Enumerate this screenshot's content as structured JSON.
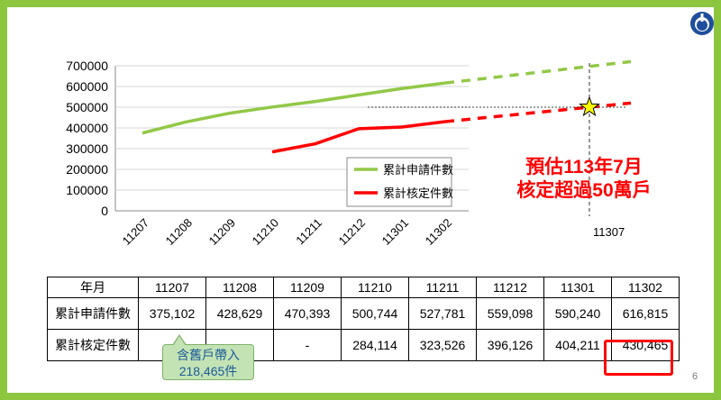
{
  "chart_data": {
    "type": "line",
    "categories": [
      "11207",
      "11208",
      "11209",
      "11210",
      "11211",
      "11212",
      "11301",
      "11302"
    ],
    "projection_label": "11307",
    "yticks": [
      "700000",
      "600000",
      "500000",
      "400000",
      "300000",
      "200000",
      "100000",
      "0"
    ],
    "ylim": [
      0,
      700000
    ],
    "series": [
      {
        "name": "累計申請件數",
        "color": "#92c847",
        "values": [
          375102,
          428629,
          470393,
          500744,
          527781,
          559098,
          590240,
          616815
        ],
        "projection": [
          616815,
          720000
        ]
      },
      {
        "name": "累計核定件數",
        "color": "#ff0000",
        "values": [
          null,
          null,
          null,
          284114,
          323526,
          396126,
          404211,
          430465
        ],
        "projection": [
          430465,
          520000
        ]
      }
    ],
    "marker_value": 500000,
    "legend_position": "bottom-right"
  },
  "callout": {
    "line1": "預估113年7月",
    "line2": "核定超過50萬戶"
  },
  "table": {
    "header": [
      "年月",
      "11207",
      "11208",
      "11209",
      "11210",
      "11211",
      "11212",
      "11301",
      "11302"
    ],
    "rows": [
      [
        "累計申請件數",
        "375,102",
        "428,629",
        "470,393",
        "500,744",
        "527,781",
        "559,098",
        "590,240",
        "616,815"
      ],
      [
        "累計核定件數",
        "",
        "",
        "-",
        "284,114",
        "323,526",
        "396,126",
        "404,211",
        "430,465"
      ]
    ]
  },
  "note": {
    "line1": "含舊戶帶入",
    "line2": "218,465件"
  },
  "page_number": "6",
  "colors": {
    "border": "#8cc63e",
    "accent": "#ff0000",
    "logo": "#1f4e9c"
  }
}
